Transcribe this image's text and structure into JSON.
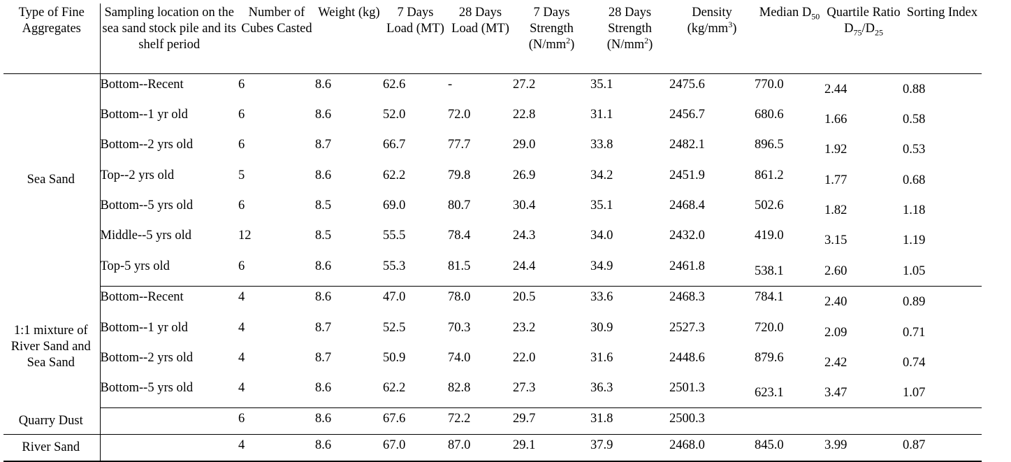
{
  "table": {
    "headers": {
      "type": "Type of Fine Aggregates",
      "location": "Sampling location on the sea sand stock pile and its shelf period",
      "cubes": "Number of Cubes Casted",
      "weight": "Weight (kg)",
      "load7": "7 Days Load (MT)",
      "load28": "28 Days Load (MT)",
      "strength7_a": "7 Days Strength (N/mm",
      "strength7_sup": "2",
      "strength7_b": ")",
      "strength28_a": "28 Days Strength (N/mm",
      "strength28_sup": "2",
      "strength28_b": ")",
      "density_a": "Density (kg/mm",
      "density_sup": "3",
      "density_b": ")",
      "median_a": "Median D",
      "median_sub": "50",
      "quartile_a": "Quartile Ratio D",
      "quartile_sub1": "75",
      "quartile_mid": "/D",
      "quartile_sub2": "25",
      "sorting": "Sorting Index"
    },
    "groups": [
      {
        "type": "Sea Sand",
        "rows": [
          {
            "location": "Bottom--Recent",
            "cubes": "6",
            "weight": "8.6",
            "load7": "62.6",
            "load28": "-",
            "strength7": "27.2",
            "strength28": "35.1",
            "density": "2475.6",
            "median": "770.0",
            "quartile": "2.44",
            "sorting": "0.88"
          },
          {
            "location": "Bottom--1 yr old",
            "cubes": "6",
            "weight": "8.6",
            "load7": "52.0",
            "load28": "72.0",
            "strength7": "22.8",
            "strength28": "31.1",
            "density": "2456.7",
            "median": "680.6",
            "quartile": "1.66",
            "sorting": "0.58"
          },
          {
            "location": "Bottom--2 yrs old",
            "cubes": "6",
            "weight": "8.7",
            "load7": "66.7",
            "load28": "77.7",
            "strength7": "29.0",
            "strength28": "33.8",
            "density": "2482.1",
            "median": "896.5",
            "quartile": "1.92",
            "sorting": "0.53"
          },
          {
            "location": "Top--2 yrs old",
            "cubes": "5",
            "weight": "8.6",
            "load7": "62.2",
            "load28": "79.8",
            "strength7": "26.9",
            "strength28": "34.2",
            "density": "2451.9",
            "median": "861.2",
            "quartile": "1.77",
            "sorting": "0.68"
          },
          {
            "location": "Bottom--5 yrs old",
            "cubes": "6",
            "weight": "8.5",
            "load7": "69.0",
            "load28": "80.7",
            "strength7": "30.4",
            "strength28": "35.1",
            "density": "2468.4",
            "median": "502.6",
            "quartile": "1.82",
            "sorting": "1.18"
          },
          {
            "location": "Middle--5 yrs old",
            "cubes": "12",
            "weight": "8.5",
            "load7": "55.5",
            "load28": "78.4",
            "strength7": "24.3",
            "strength28": "34.0",
            "density": "2432.0",
            "median": "419.0",
            "quartile": "3.15",
            "sorting": "1.19"
          },
          {
            "location": "Top-5 yrs old",
            "cubes": "6",
            "weight": "8.6",
            "load7": "55.3",
            "load28": "81.5",
            "strength7": "24.4",
            "strength28": "34.9",
            "density": "2461.8",
            "median": "538.1",
            "quartile": "2.60",
            "sorting": "1.05"
          }
        ]
      },
      {
        "type": "1:1 mixture of River Sand and Sea Sand",
        "rows": [
          {
            "location": "Bottom--Recent",
            "cubes": "4",
            "weight": "8.6",
            "load7": "47.0",
            "load28": "78.0",
            "strength7": "20.5",
            "strength28": "33.6",
            "density": "2468.3",
            "median": "784.1",
            "quartile": "2.40",
            "sorting": "0.89"
          },
          {
            "location": "Bottom--1 yr old",
            "cubes": "4",
            "weight": "8.7",
            "load7": "52.5",
            "load28": "70.3",
            "strength7": "23.2",
            "strength28": "30.9",
            "density": "2527.3",
            "median": "720.0",
            "quartile": "2.09",
            "sorting": "0.71"
          },
          {
            "location": "Bottom--2 yrs old",
            "cubes": "4",
            "weight": "8.7",
            "load7": "50.9",
            "load28": "74.0",
            "strength7": "22.0",
            "strength28": "31.6",
            "density": "2448.6",
            "median": "879.6",
            "quartile": "2.42",
            "sorting": "0.74"
          },
          {
            "location": "Bottom--5 yrs old",
            "cubes": "4",
            "weight": "8.6",
            "load7": "62.2",
            "load28": "82.8",
            "strength7": "27.3",
            "strength28": "36.3",
            "density": "2501.3",
            "median": "623.1",
            "quartile": "3.47",
            "sorting": "1.07"
          }
        ]
      },
      {
        "type": "Quarry Dust",
        "rows": [
          {
            "location": "",
            "cubes": "6",
            "weight": "8.6",
            "load7": "67.6",
            "load28": "72.2",
            "strength7": "29.7",
            "strength28": "31.8",
            "density": "2500.3",
            "median": "",
            "quartile": "",
            "sorting": ""
          }
        ]
      },
      {
        "type": "River Sand",
        "rows": [
          {
            "location": "",
            "cubes": "4",
            "weight": "8.6",
            "load7": "67.0",
            "load28": "87.0",
            "strength7": "29.1",
            "strength28": "37.9",
            "density": "2468.0",
            "median": "845.0",
            "quartile": "3.99",
            "sorting": "0.87"
          }
        ]
      }
    ]
  }
}
